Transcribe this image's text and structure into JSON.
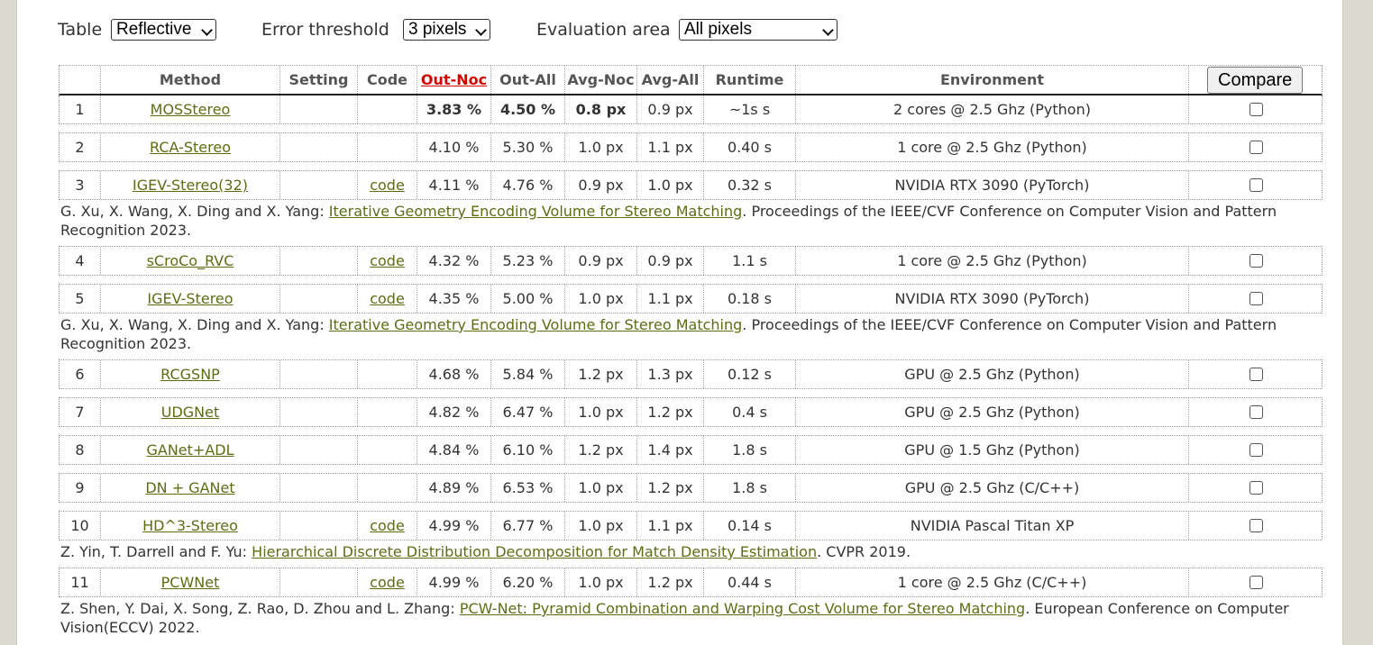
{
  "filters": {
    "table_label": "Table",
    "table_value": "Reflective",
    "threshold_label": "Error threshold",
    "threshold_value": "3 pixels",
    "area_label": "Evaluation area",
    "area_value": "All pixels"
  },
  "columns": [
    "",
    "Method",
    "Setting",
    "Code",
    "Out-Noc",
    "Out-All",
    "Avg-Noc",
    "Avg-All",
    "Runtime",
    "Environment"
  ],
  "compare_label": "Compare",
  "rows": [
    {
      "rank": "1",
      "method": "MOSStereo",
      "setting": "",
      "code": "",
      "out_noc": "3.83 %",
      "out_all": "4.50 %",
      "avg_noc": "0.8 px",
      "avg_all": "0.9 px",
      "runtime": "~1s s",
      "env": "2 cores @ 2.5 Ghz (Python)",
      "best": true
    },
    {
      "rank": "2",
      "method": "RCA-Stereo",
      "setting": "",
      "code": "",
      "out_noc": "4.10 %",
      "out_all": "5.30 %",
      "avg_noc": "1.0 px",
      "avg_all": "1.1 px",
      "runtime": "0.40 s",
      "env": "1 core @ 2.5 Ghz (Python)"
    },
    {
      "rank": "3",
      "method": "IGEV-Stereo(32)",
      "setting": "",
      "code": "code",
      "out_noc": "4.11 %",
      "out_all": "4.76 %",
      "avg_noc": "0.9 px",
      "avg_all": "1.0 px",
      "runtime": "0.32 s",
      "env": "NVIDIA RTX 3090 (PyTorch)",
      "cite": {
        "pre": "G. Xu, X. Wang, X. Ding and X. Yang: ",
        "link": "Iterative Geometry Encoding Volume for Stereo Matching",
        "post": ". Proceedings of the IEEE/CVF Conference on Computer Vision and Pattern Recognition 2023."
      }
    },
    {
      "rank": "4",
      "method": "sCroCo_RVC",
      "setting": "",
      "code": "code",
      "out_noc": "4.32 %",
      "out_all": "5.23 %",
      "avg_noc": "0.9 px",
      "avg_all": "0.9 px",
      "runtime": "1.1 s",
      "env": "1 core @ 2.5 Ghz (Python)"
    },
    {
      "rank": "5",
      "method": "IGEV-Stereo",
      "setting": "",
      "code": "code",
      "out_noc": "4.35 %",
      "out_all": "5.00 %",
      "avg_noc": "1.0 px",
      "avg_all": "1.1 px",
      "runtime": "0.18 s",
      "env": "NVIDIA RTX 3090 (PyTorch)",
      "cite": {
        "pre": "G. Xu, X. Wang, X. Ding and X. Yang: ",
        "link": "Iterative Geometry Encoding Volume for Stereo Matching",
        "post": ". Proceedings of the IEEE/CVF Conference on Computer Vision and Pattern Recognition 2023."
      }
    },
    {
      "rank": "6",
      "method": "RCGSNP",
      "setting": "",
      "code": "",
      "out_noc": "4.68 %",
      "out_all": "5.84 %",
      "avg_noc": "1.2 px",
      "avg_all": "1.3 px",
      "runtime": "0.12 s",
      "env": "GPU @ 2.5 Ghz (Python)"
    },
    {
      "rank": "7",
      "method": "UDGNet",
      "setting": "",
      "code": "",
      "out_noc": "4.82 %",
      "out_all": "6.47 %",
      "avg_noc": "1.0 px",
      "avg_all": "1.2 px",
      "runtime": "0.4 s",
      "env": "GPU @ 2.5 Ghz (Python)"
    },
    {
      "rank": "8",
      "method": "GANet+ADL",
      "setting": "",
      "code": "",
      "out_noc": "4.84 %",
      "out_all": "6.10 %",
      "avg_noc": "1.2 px",
      "avg_all": "1.4 px",
      "runtime": "1.8 s",
      "env": "GPU @ 1.5 Ghz (Python)"
    },
    {
      "rank": "9",
      "method": "DN + GANet",
      "setting": "",
      "code": "",
      "out_noc": "4.89 %",
      "out_all": "6.53 %",
      "avg_noc": "1.0 px",
      "avg_all": "1.2 px",
      "runtime": "1.8 s",
      "env": "GPU @ 2.5 Ghz (C/C++)"
    },
    {
      "rank": "10",
      "method": "HD^3-Stereo",
      "setting": "",
      "code": "code",
      "out_noc": "4.99 %",
      "out_all": "6.77 %",
      "avg_noc": "1.0 px",
      "avg_all": "1.1 px",
      "runtime": "0.14 s",
      "env": "NVIDIA Pascal Titan XP",
      "cite": {
        "pre": "Z. Yin, T. Darrell and F. Yu: ",
        "link": "Hierarchical Discrete Distribution Decomposition for Match Density Estimation",
        "post": ". CVPR 2019."
      }
    },
    {
      "rank": "11",
      "method": "PCWNet",
      "setting": "",
      "code": "code",
      "out_noc": "4.99 %",
      "out_all": "6.20 %",
      "avg_noc": "1.0 px",
      "avg_all": "1.2 px",
      "runtime": "0.44 s",
      "env": "1 core @ 2.5 Ghz (C/C++)",
      "cite": {
        "pre": "Z. Shen, Y. Dai, X. Song, Z. Rao, D. Zhou and L. Zhang: ",
        "link": "PCW-Net: Pyramid Combination and Warping Cost Volume for Stereo Matching",
        "post": ". European Conference on Computer Vision(ECCV) 2022."
      }
    }
  ]
}
